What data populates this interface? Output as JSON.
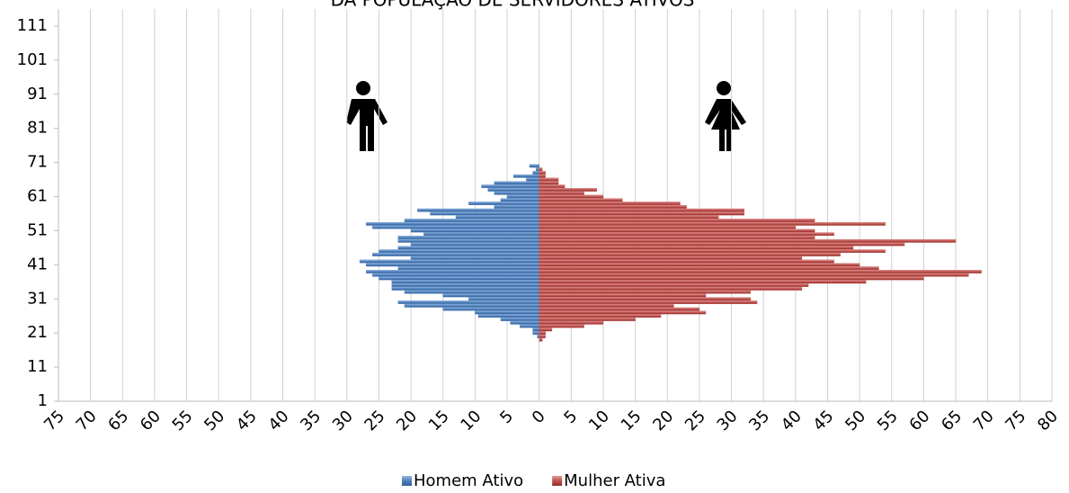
{
  "chart_data": {
    "type": "pyramid",
    "title": "DA POPULAÇÃO DE SERVIDORES ATIVOS",
    "ages": [
      19,
      20,
      21,
      22,
      23,
      24,
      25,
      26,
      27,
      28,
      29,
      30,
      31,
      32,
      33,
      34,
      35,
      36,
      37,
      38,
      39,
      40,
      41,
      42,
      43,
      44,
      45,
      46,
      47,
      48,
      49,
      50,
      51,
      52,
      53,
      54,
      55,
      56,
      57,
      58,
      59,
      60,
      61,
      62,
      63,
      64,
      65,
      66,
      67,
      68,
      69,
      70
    ],
    "series": [
      {
        "name": "Homem Ativo",
        "color": "#4f81bd",
        "side": "left",
        "values": [
          0,
          0.3,
          1,
          1,
          3,
          4.5,
          6,
          9.5,
          10,
          15,
          21,
          22,
          11,
          15,
          21,
          23,
          23,
          23,
          25,
          26,
          27,
          22,
          27,
          28,
          20,
          26,
          25,
          22,
          20,
          22,
          22,
          18,
          20,
          26,
          27,
          21,
          13,
          17,
          19,
          7,
          11,
          6,
          5,
          7,
          8,
          9,
          7,
          2,
          4,
          1,
          0.5,
          1.5
        ]
      },
      {
        "name": "Mulher Ativa",
        "color": "#c0504d",
        "side": "right",
        "values": [
          0.5,
          1,
          1,
          2,
          7,
          10,
          15,
          19,
          26,
          25,
          21,
          34,
          33,
          26,
          33,
          41,
          42,
          51,
          60,
          67,
          69,
          53,
          50,
          46,
          41,
          47,
          54,
          49,
          57,
          65,
          43,
          46,
          43,
          40,
          54,
          43,
          28,
          32,
          32,
          23,
          22,
          13,
          10,
          7,
          9,
          4,
          3,
          3,
          1,
          1,
          0.5,
          0
        ]
      }
    ],
    "xlim": [
      -75,
      80
    ],
    "xticks": [
      {
        "value": -75,
        "label": "75"
      },
      {
        "value": -70,
        "label": "70"
      },
      {
        "value": -65,
        "label": "65"
      },
      {
        "value": -60,
        "label": "60"
      },
      {
        "value": -55,
        "label": "55"
      },
      {
        "value": -50,
        "label": "50"
      },
      {
        "value": -45,
        "label": "45"
      },
      {
        "value": -40,
        "label": "40"
      },
      {
        "value": -35,
        "label": "35"
      },
      {
        "value": -30,
        "label": "30"
      },
      {
        "value": -25,
        "label": "25"
      },
      {
        "value": -20,
        "label": "20"
      },
      {
        "value": -15,
        "label": "15"
      },
      {
        "value": -10,
        "label": "10"
      },
      {
        "value": -5,
        "label": "5"
      },
      0,
      5,
      10,
      15,
      20,
      25,
      30,
      35,
      40,
      45,
      50,
      55,
      60,
      65,
      70,
      75,
      80
    ],
    "ylim": [
      1,
      116
    ],
    "yticks": [
      1,
      11,
      21,
      31,
      41,
      51,
      61,
      71,
      81,
      91,
      101,
      111
    ],
    "grid": true
  }
}
